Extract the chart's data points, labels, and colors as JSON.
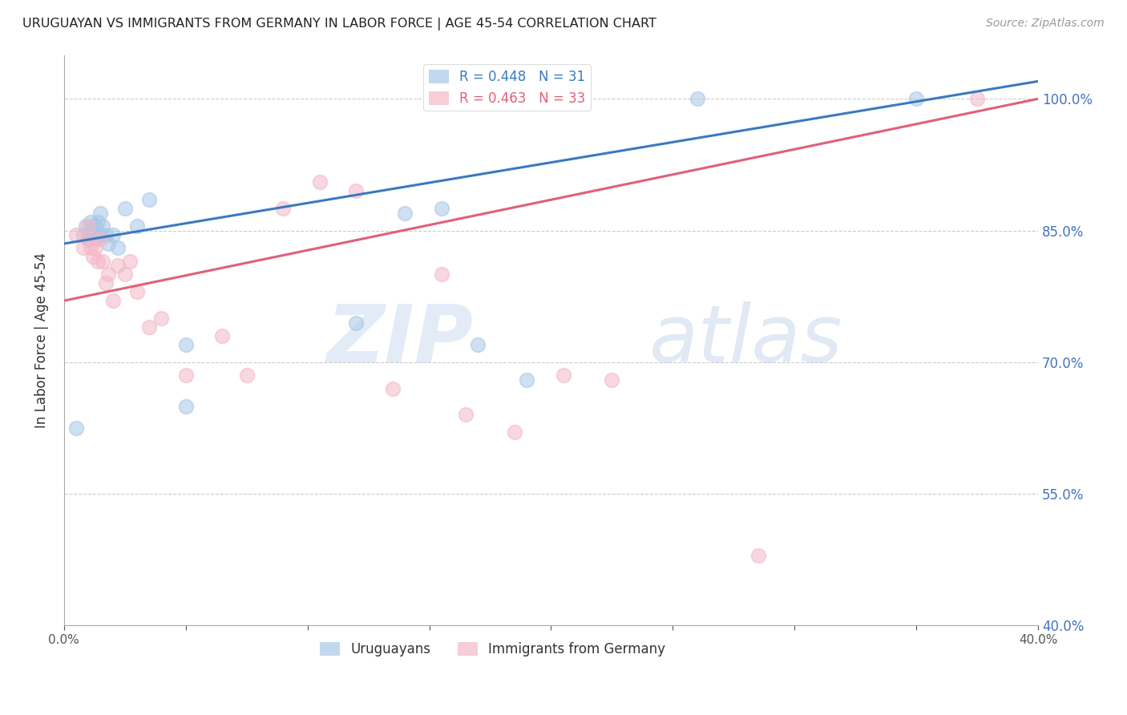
{
  "title": "URUGUAYAN VS IMMIGRANTS FROM GERMANY IN LABOR FORCE | AGE 45-54 CORRELATION CHART",
  "source": "Source: ZipAtlas.com",
  "ylabel": "In Labor Force | Age 45-54",
  "xlim": [
    0.0,
    0.4
  ],
  "ylim": [
    0.4,
    1.05
  ],
  "yticks": [
    0.4,
    0.55,
    0.7,
    0.85,
    1.0
  ],
  "right_ytick_labels": [
    "40.0%",
    "55.0%",
    "70.0%",
    "85.0%",
    "100.0%"
  ],
  "xticks": [
    0.0,
    0.05,
    0.1,
    0.15,
    0.2,
    0.25,
    0.3,
    0.35,
    0.4
  ],
  "xtick_labels": [
    "0.0%",
    "",
    "",
    "",
    "",
    "",
    "",
    "",
    "40.0%"
  ],
  "blue_R": 0.448,
  "blue_N": 31,
  "pink_R": 0.463,
  "pink_N": 33,
  "blue_color": "#a8c8e8",
  "pink_color": "#f4b8c8",
  "blue_line_color": "#3a7abf",
  "pink_line_color": "#e0607a",
  "blue_scatter_x": [
    0.005,
    0.008,
    0.009,
    0.01,
    0.01,
    0.011,
    0.012,
    0.012,
    0.013,
    0.013,
    0.014,
    0.014,
    0.015,
    0.015,
    0.016,
    0.017,
    0.018,
    0.02,
    0.022,
    0.025,
    0.03,
    0.035,
    0.05,
    0.05,
    0.12,
    0.14,
    0.155,
    0.17,
    0.19,
    0.26,
    0.35
  ],
  "blue_scatter_y": [
    0.625,
    0.845,
    0.855,
    0.845,
    0.84,
    0.86,
    0.845,
    0.855,
    0.855,
    0.84,
    0.845,
    0.86,
    0.845,
    0.87,
    0.855,
    0.845,
    0.835,
    0.845,
    0.83,
    0.875,
    0.855,
    0.885,
    0.72,
    0.65,
    0.745,
    0.87,
    0.875,
    0.72,
    0.68,
    1.0,
    1.0
  ],
  "pink_scatter_x": [
    0.005,
    0.008,
    0.01,
    0.01,
    0.011,
    0.012,
    0.013,
    0.014,
    0.015,
    0.016,
    0.017,
    0.018,
    0.02,
    0.022,
    0.025,
    0.027,
    0.03,
    0.035,
    0.04,
    0.05,
    0.065,
    0.075,
    0.09,
    0.105,
    0.12,
    0.135,
    0.155,
    0.165,
    0.185,
    0.205,
    0.225,
    0.285,
    0.375
  ],
  "pink_scatter_y": [
    0.845,
    0.83,
    0.84,
    0.855,
    0.83,
    0.82,
    0.83,
    0.815,
    0.84,
    0.815,
    0.79,
    0.8,
    0.77,
    0.81,
    0.8,
    0.815,
    0.78,
    0.74,
    0.75,
    0.685,
    0.73,
    0.685,
    0.875,
    0.905,
    0.895,
    0.67,
    0.8,
    0.64,
    0.62,
    0.685,
    0.68,
    0.48,
    1.0
  ],
  "blue_trendline_x": [
    0.0,
    0.4
  ],
  "blue_trendline_y": [
    0.835,
    1.02
  ],
  "pink_trendline_x": [
    0.0,
    0.4
  ],
  "pink_trendline_y": [
    0.77,
    1.0
  ]
}
